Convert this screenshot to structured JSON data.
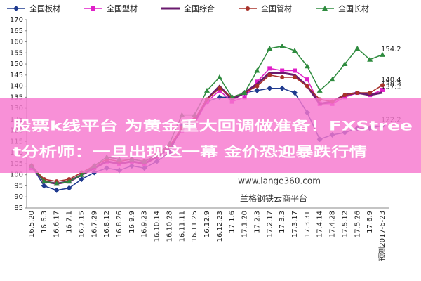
{
  "chart_data": {
    "type": "line",
    "categories": [
      "16.5.20",
      "16.6.3",
      "16.6.17",
      "16.7.1",
      "16.7.15",
      "16.7.29",
      "16.8.12",
      "16.8.26",
      "16.9.9",
      "16.9.23",
      "16.10.14",
      "16.10.28",
      "16.11.11",
      "16.11.25",
      "16.12.9",
      "16.12.23",
      "17.1.6",
      "17.1.20",
      "17.2.3",
      "17.2.17",
      "17.3.3",
      "17.3.17",
      "17.3.31",
      "17.4.14",
      "17.4.28",
      "17.5.12",
      "17.5.26",
      "17.6.9",
      "预测2017-6-23"
    ],
    "series": [
      {
        "name": "全国板材",
        "color": "#1f3a8f",
        "marker": "diamond",
        "values": [
          104,
          95,
          93,
          94,
          98,
          101,
          103,
          102,
          104,
          103,
          106,
          110,
          122,
          125,
          133,
          135,
          135,
          137,
          138,
          139,
          139,
          137,
          128,
          116,
          118,
          119,
          121,
          121,
          122.2
        ]
      },
      {
        "name": "全国型材",
        "color": "#e01fc8",
        "marker": "square",
        "values": [
          103,
          97,
          96,
          97,
          100,
          103,
          106,
          105,
          106,
          105,
          108,
          112,
          120,
          123,
          133,
          138,
          133,
          135,
          142,
          148,
          147,
          147,
          143,
          132,
          132,
          135,
          137,
          136,
          138.3
        ]
      },
      {
        "name": "全国综合",
        "color": "#6a1a6e",
        "marker": "none",
        "values": [
          104,
          97,
          96,
          97,
          100,
          103,
          106,
          105,
          106,
          105,
          108,
          112,
          121,
          124,
          134,
          140,
          134,
          137,
          141,
          146,
          146,
          145,
          140,
          132,
          133,
          136,
          137,
          136,
          137.1
        ]
      },
      {
        "name": "全国管材",
        "color": "#a8322a",
        "marker": "circle",
        "values": [
          104,
          98,
          97,
          98,
          101,
          104,
          107,
          106,
          107,
          106,
          109,
          113,
          121,
          125,
          134,
          139,
          135,
          137,
          140,
          145,
          144,
          144,
          140,
          134,
          133,
          136,
          137,
          137,
          140.4
        ]
      },
      {
        "name": "全国长材",
        "color": "#2e8b3e",
        "marker": "triangle",
        "values": [
          104,
          97,
          96,
          97,
          100,
          104,
          108,
          107,
          107,
          106,
          109,
          114,
          127,
          127,
          138,
          144,
          135,
          137,
          147,
          157,
          158,
          156,
          149,
          138,
          143,
          150,
          157,
          152,
          154.2
        ]
      }
    ],
    "ylim": [
      85,
      170
    ],
    "yticks": [
      85,
      90,
      95,
      100,
      105,
      110,
      115,
      120,
      125,
      130,
      135,
      140,
      145,
      150,
      155,
      160,
      165,
      170
    ],
    "grid": false,
    "watermark": [
      "www.lange360.com",
      "兰格钢铁云商平台"
    ]
  },
  "overlay": {
    "lines": [
      "股票k线平台 为黄金重大回调做准备！FXStree",
      "t分析师：一旦出现这一幕 金价恐迎暴跌行情"
    ]
  }
}
